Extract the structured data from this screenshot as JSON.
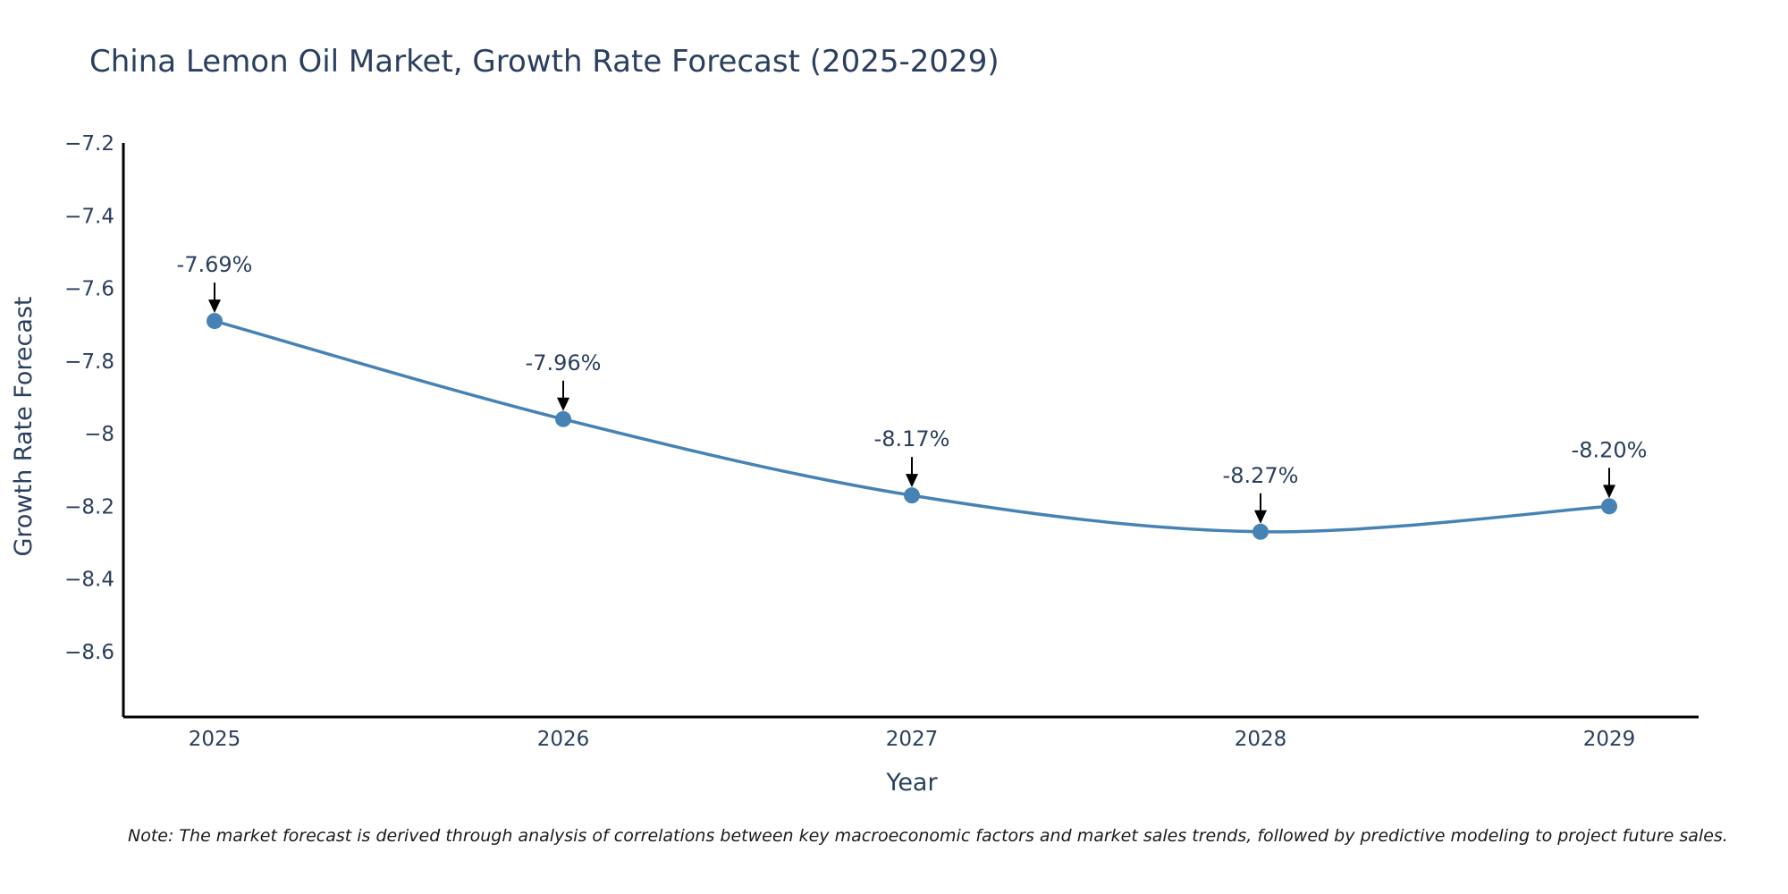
{
  "chart_data": {
    "type": "line",
    "title": "China Lemon Oil Market, Growth Rate Forecast (2025-2029)",
    "xlabel": "Year",
    "ylabel": "Growth Rate Forecast",
    "categories": [
      "2025",
      "2026",
      "2027",
      "2028",
      "2029"
    ],
    "series": [
      {
        "name": "Growth Rate Forecast",
        "values": [
          -7.69,
          -7.96,
          -8.17,
          -8.27,
          -8.2
        ],
        "labels": [
          "-7.69%",
          "-7.96%",
          "-8.17%",
          "-8.27%",
          "-8.20%"
        ]
      }
    ],
    "ylim": [
      -8.78,
      -7.2
    ],
    "yticks": [
      -7.2,
      -7.4,
      -7.6,
      -7.8,
      -8,
      -8.2,
      -8.4,
      -8.6
    ],
    "ytick_labels": [
      "−7.2",
      "−7.4",
      "−7.6",
      "−7.8",
      "−8",
      "−8.2",
      "−8.4",
      "−8.6"
    ],
    "grid": false,
    "line_color": "#4682b4",
    "marker_color": "#4682b4",
    "annotation_arrow_color": "#000000",
    "note": "Note: The market forecast is derived through analysis of correlations between key macroeconomic factors and market sales trends, followed by predictive modeling to project future sales."
  }
}
